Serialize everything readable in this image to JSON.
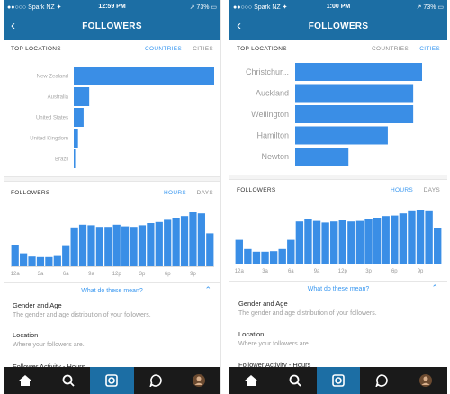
{
  "colors": {
    "accent": "#3897f0",
    "bar": "#3a8ee6",
    "navbar": "#1c6ea4",
    "tabbar": "#1a1a1a"
  },
  "screens": [
    {
      "status": {
        "carrier": "●●○○○ Spark NZ ✦",
        "time": "12:59 PM",
        "battery": "↗ 73% ▭"
      },
      "nav_title": "FOLLOWERS",
      "top_locations": {
        "title": "TOP LOCATIONS",
        "toggle_countries": "COUNTRIES",
        "toggle_cities": "CITIES",
        "active": "countries"
      },
      "followers": {
        "title": "FOLLOWERS",
        "toggle_hours": "HOURS",
        "toggle_days": "DAYS",
        "active": "hours"
      },
      "info_link": "What do these mean?",
      "descriptions": [
        {
          "title": "Gender and Age",
          "body": "The gender and age distribution of your followers."
        },
        {
          "title": "Location",
          "body": "Where your followers are."
        },
        {
          "title": "Follower Activity - Hours",
          "body": ""
        }
      ],
      "tabbar": {
        "items": [
          "home-icon",
          "search-icon",
          "camera-icon",
          "activity-icon",
          "profile-icon"
        ],
        "active": 2
      }
    },
    {
      "status": {
        "carrier": "●●○○○ Spark NZ ✦",
        "time": "1:00 PM",
        "battery": "↗ 73% ▭"
      },
      "nav_title": "FOLLOWERS",
      "top_locations": {
        "title": "TOP LOCATIONS",
        "toggle_countries": "COUNTRIES",
        "toggle_cities": "CITIES",
        "active": "cities"
      },
      "followers": {
        "title": "FOLLOWERS",
        "toggle_hours": "HOURS",
        "toggle_days": "DAYS",
        "active": "hours"
      },
      "info_link": "What do these mean?",
      "descriptions": [
        {
          "title": "Gender and Age",
          "body": "The gender and age distribution of your followers."
        },
        {
          "title": "Location",
          "body": "Where your followers are."
        },
        {
          "title": "Follower Activity - Hours",
          "body": ""
        }
      ],
      "tabbar": {
        "items": [
          "home-icon",
          "search-icon",
          "camera-icon",
          "activity-icon",
          "profile-icon"
        ],
        "active": 2
      }
    }
  ],
  "chart_data": [
    {
      "type": "bar",
      "orientation": "horizontal",
      "categories": [
        "New Zealand",
        "Australia",
        "United States",
        "United Kingdom",
        "Brazil"
      ],
      "values": [
        100,
        11,
        7,
        3,
        1
      ],
      "xlim": [
        0,
        100
      ]
    },
    {
      "type": "bar",
      "categories": [
        "12a",
        "",
        "",
        "3a",
        "",
        "",
        "6a",
        "",
        "",
        "9a",
        "",
        "",
        "12p",
        "",
        "",
        "3p",
        "",
        "",
        "6p",
        "",
        "",
        "9p",
        "",
        ""
      ],
      "tick_labels": [
        "12a",
        "3a",
        "6a",
        "9a",
        "12p",
        "3p",
        "6p",
        "9p"
      ],
      "values": [
        40,
        24,
        18,
        17,
        17,
        19,
        39,
        72,
        77,
        76,
        73,
        73,
        77,
        74,
        73,
        76,
        80,
        82,
        86,
        90,
        93,
        100,
        98,
        61
      ],
      "ylim": [
        0,
        100
      ]
    },
    {
      "type": "bar",
      "orientation": "horizontal",
      "categories": [
        "Christchur...",
        "Auckland",
        "Wellington",
        "Hamilton",
        "Newton"
      ],
      "values": [
        100,
        93,
        93,
        73,
        42
      ],
      "xlim": [
        0,
        100
      ]
    },
    {
      "type": "bar",
      "categories": [
        "12a",
        "",
        "",
        "3a",
        "",
        "",
        "6a",
        "",
        "",
        "9a",
        "",
        "",
        "12p",
        "",
        "",
        "3p",
        "",
        "",
        "6p",
        "",
        "",
        "9p",
        "",
        ""
      ],
      "tick_labels": [
        "12a",
        "3a",
        "6a",
        "9a",
        "12p",
        "3p",
        "6p",
        "9p"
      ],
      "values": [
        44,
        27,
        22,
        22,
        23,
        27,
        44,
        78,
        82,
        79,
        76,
        78,
        80,
        78,
        79,
        82,
        85,
        88,
        89,
        93,
        97,
        100,
        97,
        65
      ],
      "ylim": [
        0,
        100
      ]
    }
  ]
}
